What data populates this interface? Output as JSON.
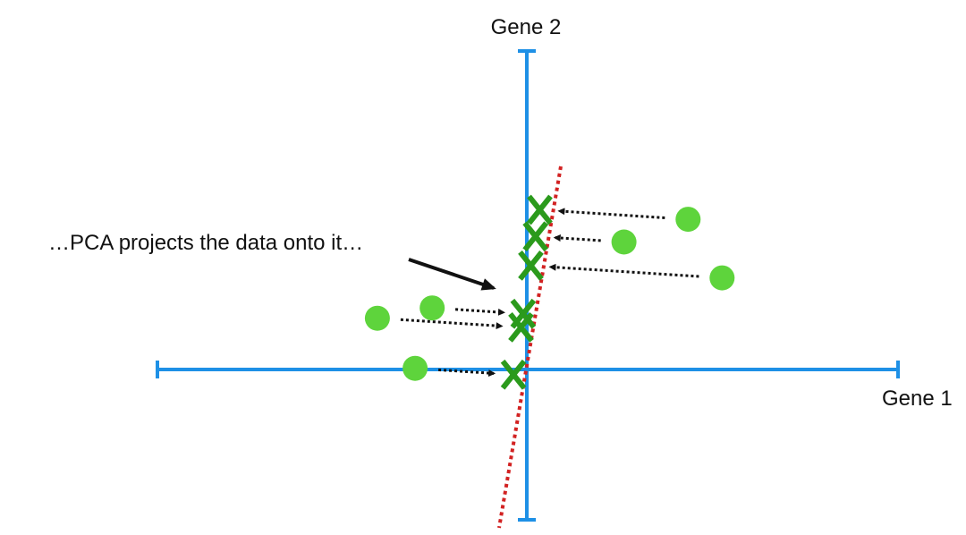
{
  "labels": {
    "y_axis": "Gene 2",
    "x_axis": "Gene 1",
    "annotation": "…PCA projects the data onto it…"
  },
  "colors": {
    "axis": "#1e90e6",
    "fit_line": "#d22222",
    "point": "#5ed43c",
    "projection_x": "#2b9a1c",
    "arrow": "#111111"
  },
  "chart_data": {
    "type": "scatter",
    "title": "",
    "xlabel": "Gene 1",
    "ylabel": "Gene 2",
    "xlim": [
      -10,
      10
    ],
    "ylim": [
      -10,
      10
    ],
    "grid": false,
    "fit_line": {
      "slope": 9.9
    },
    "points": [
      {
        "x": 4.33,
        "y": 2.82
      },
      {
        "x": 2.6,
        "y": 1.85
      },
      {
        "x": 5.25,
        "y": 0.32
      },
      {
        "x": -2.58,
        "y": -0.96
      },
      {
        "x": -4.06,
        "y": -1.4
      },
      {
        "x": -3.04,
        "y": -3.54
      }
    ]
  }
}
